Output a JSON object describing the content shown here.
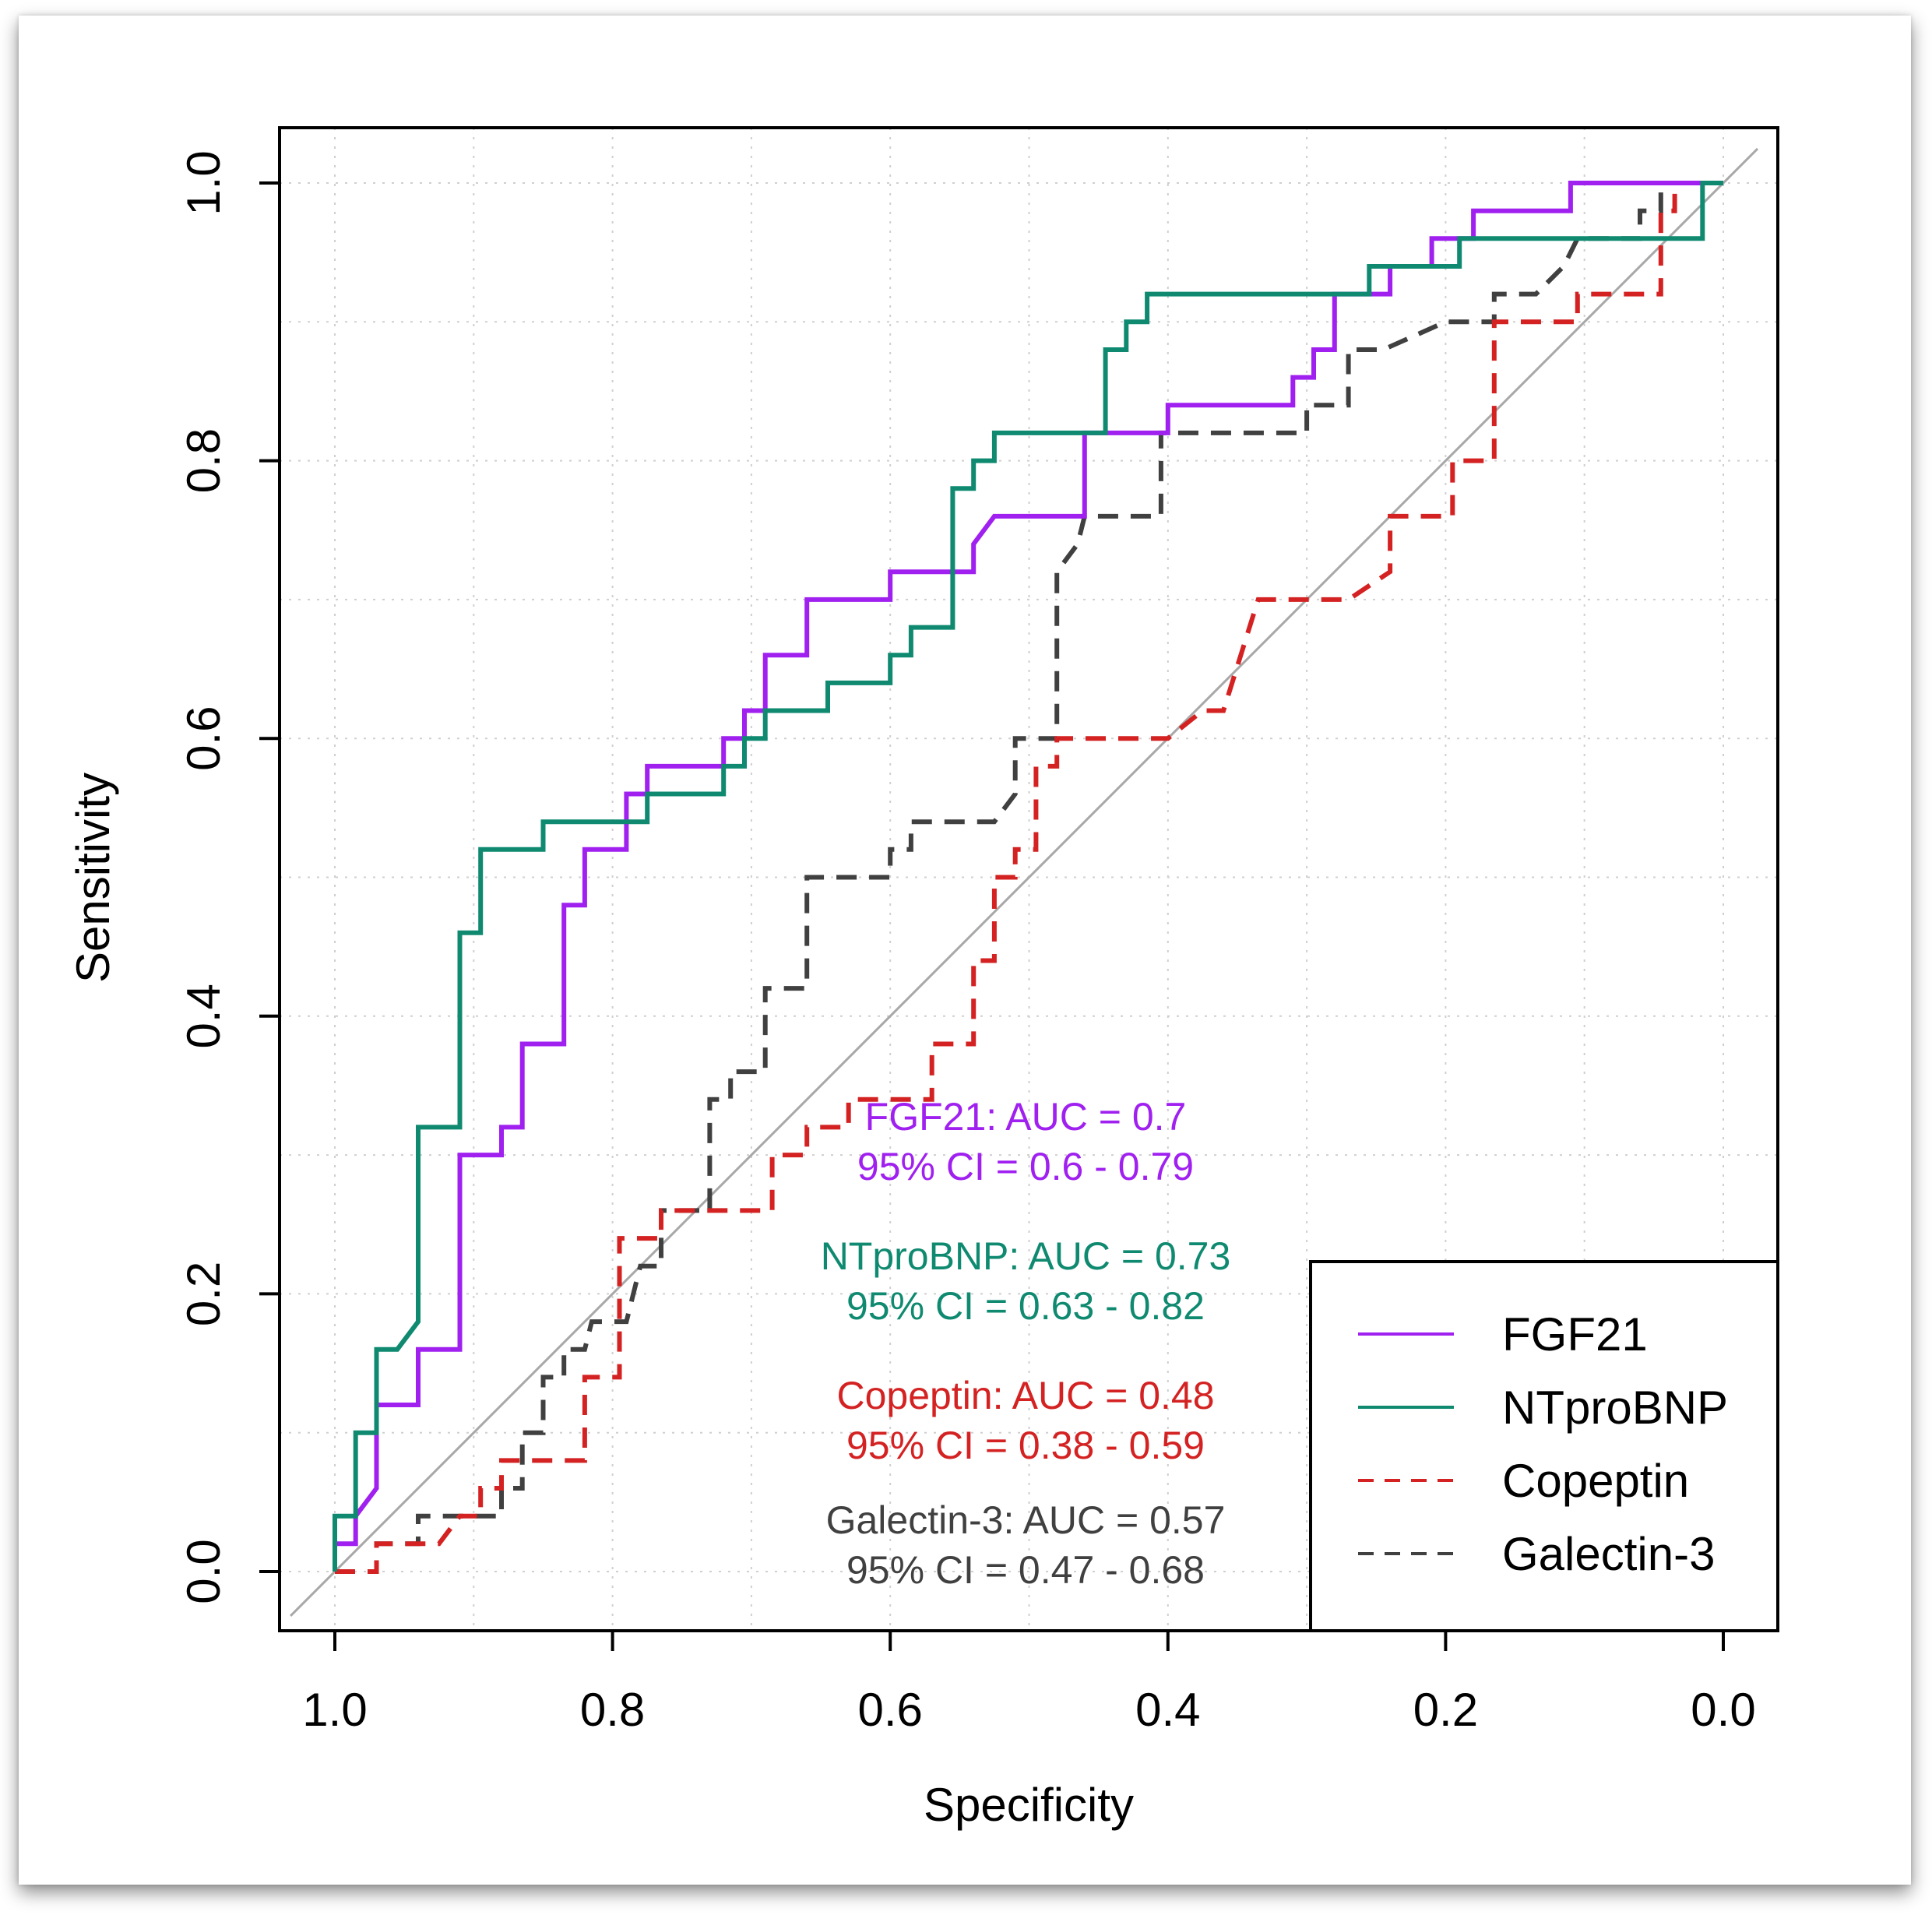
{
  "chart_data": {
    "type": "line",
    "xlabel": "Specificity",
    "ylabel": "Sensitivity",
    "xlim": [
      1.0,
      0.0
    ],
    "ylim": [
      0.0,
      1.0
    ],
    "x_reversed": true,
    "grid": true,
    "x_ticks": [
      "1.0",
      "0.8",
      "0.6",
      "0.4",
      "0.2",
      "0.0"
    ],
    "y_ticks": [
      "0.0",
      "0.2",
      "0.4",
      "0.6",
      "0.8",
      "1.0"
    ],
    "reference_line": {
      "from": [
        1.0,
        0.0
      ],
      "to": [
        0.0,
        1.0
      ],
      "color": "#a8a8a8"
    },
    "legend_position": "bottom-right",
    "series": [
      {
        "name": "FGF21",
        "color": "#a020f0",
        "dash": "solid",
        "auc_label": "FGF21: AUC = 0.7",
        "ci_label": "95% CI = 0.6 - 0.79",
        "points": [
          [
            1.0,
            0.0
          ],
          [
            1.0,
            0.02
          ],
          [
            0.985,
            0.02
          ],
          [
            0.985,
            0.04
          ],
          [
            0.97,
            0.06
          ],
          [
            0.97,
            0.12
          ],
          [
            0.94,
            0.12
          ],
          [
            0.94,
            0.16
          ],
          [
            0.91,
            0.16
          ],
          [
            0.91,
            0.3
          ],
          [
            0.88,
            0.3
          ],
          [
            0.88,
            0.32
          ],
          [
            0.865,
            0.32
          ],
          [
            0.865,
            0.38
          ],
          [
            0.835,
            0.38
          ],
          [
            0.835,
            0.48
          ],
          [
            0.82,
            0.48
          ],
          [
            0.82,
            0.52
          ],
          [
            0.79,
            0.52
          ],
          [
            0.79,
            0.56
          ],
          [
            0.775,
            0.56
          ],
          [
            0.775,
            0.58
          ],
          [
            0.72,
            0.58
          ],
          [
            0.72,
            0.6
          ],
          [
            0.705,
            0.6
          ],
          [
            0.705,
            0.62
          ],
          [
            0.69,
            0.62
          ],
          [
            0.69,
            0.66
          ],
          [
            0.66,
            0.66
          ],
          [
            0.66,
            0.7
          ],
          [
            0.6,
            0.7
          ],
          [
            0.6,
            0.72
          ],
          [
            0.54,
            0.72
          ],
          [
            0.54,
            0.74
          ],
          [
            0.525,
            0.76
          ],
          [
            0.46,
            0.76
          ],
          [
            0.46,
            0.82
          ],
          [
            0.4,
            0.82
          ],
          [
            0.4,
            0.84
          ],
          [
            0.31,
            0.84
          ],
          [
            0.31,
            0.86
          ],
          [
            0.295,
            0.86
          ],
          [
            0.295,
            0.88
          ],
          [
            0.28,
            0.88
          ],
          [
            0.28,
            0.92
          ],
          [
            0.24,
            0.92
          ],
          [
            0.24,
            0.94
          ],
          [
            0.21,
            0.94
          ],
          [
            0.21,
            0.96
          ],
          [
            0.18,
            0.96
          ],
          [
            0.18,
            0.98
          ],
          [
            0.11,
            0.98
          ],
          [
            0.11,
            1.0
          ],
          [
            0.0,
            1.0
          ]
        ]
      },
      {
        "name": "NTproBNP",
        "color": "#0f8a70",
        "dash": "solid",
        "auc_label": "NTproBNP: AUC = 0.73",
        "ci_label": "95% CI = 0.63 - 0.82",
        "points": [
          [
            1.0,
            0.0
          ],
          [
            1.0,
            0.04
          ],
          [
            0.985,
            0.04
          ],
          [
            0.985,
            0.1
          ],
          [
            0.97,
            0.1
          ],
          [
            0.97,
            0.16
          ],
          [
            0.955,
            0.16
          ],
          [
            0.94,
            0.18
          ],
          [
            0.94,
            0.32
          ],
          [
            0.91,
            0.32
          ],
          [
            0.91,
            0.46
          ],
          [
            0.895,
            0.46
          ],
          [
            0.895,
            0.52
          ],
          [
            0.85,
            0.52
          ],
          [
            0.85,
            0.54
          ],
          [
            0.775,
            0.54
          ],
          [
            0.775,
            0.56
          ],
          [
            0.72,
            0.56
          ],
          [
            0.72,
            0.58
          ],
          [
            0.705,
            0.58
          ],
          [
            0.705,
            0.6
          ],
          [
            0.69,
            0.6
          ],
          [
            0.69,
            0.62
          ],
          [
            0.645,
            0.62
          ],
          [
            0.645,
            0.64
          ],
          [
            0.6,
            0.64
          ],
          [
            0.6,
            0.66
          ],
          [
            0.585,
            0.66
          ],
          [
            0.585,
            0.68
          ],
          [
            0.555,
            0.68
          ],
          [
            0.555,
            0.78
          ],
          [
            0.54,
            0.78
          ],
          [
            0.54,
            0.8
          ],
          [
            0.525,
            0.8
          ],
          [
            0.525,
            0.82
          ],
          [
            0.445,
            0.82
          ],
          [
            0.445,
            0.88
          ],
          [
            0.43,
            0.88
          ],
          [
            0.43,
            0.9
          ],
          [
            0.415,
            0.9
          ],
          [
            0.415,
            0.92
          ],
          [
            0.255,
            0.92
          ],
          [
            0.255,
            0.94
          ],
          [
            0.19,
            0.94
          ],
          [
            0.19,
            0.96
          ],
          [
            0.015,
            0.96
          ],
          [
            0.015,
            1.0
          ],
          [
            0.0,
            1.0
          ]
        ]
      },
      {
        "name": "Copeptin",
        "color": "#d42222",
        "dash": "dashed",
        "auc_label": "Copeptin: AUC = 0.48",
        "ci_label": "95% CI = 0.38 - 0.59",
        "points": [
          [
            1.0,
            0.0
          ],
          [
            0.97,
            0.0
          ],
          [
            0.97,
            0.02
          ],
          [
            0.925,
            0.02
          ],
          [
            0.91,
            0.04
          ],
          [
            0.895,
            0.04
          ],
          [
            0.895,
            0.06
          ],
          [
            0.88,
            0.06
          ],
          [
            0.88,
            0.08
          ],
          [
            0.82,
            0.08
          ],
          [
            0.82,
            0.14
          ],
          [
            0.795,
            0.14
          ],
          [
            0.795,
            0.24
          ],
          [
            0.765,
            0.24
          ],
          [
            0.765,
            0.26
          ],
          [
            0.685,
            0.26
          ],
          [
            0.685,
            0.3
          ],
          [
            0.66,
            0.3
          ],
          [
            0.66,
            0.32
          ],
          [
            0.63,
            0.32
          ],
          [
            0.63,
            0.34
          ],
          [
            0.57,
            0.34
          ],
          [
            0.57,
            0.38
          ],
          [
            0.54,
            0.38
          ],
          [
            0.54,
            0.44
          ],
          [
            0.525,
            0.44
          ],
          [
            0.525,
            0.5
          ],
          [
            0.51,
            0.5
          ],
          [
            0.51,
            0.52
          ],
          [
            0.495,
            0.52
          ],
          [
            0.495,
            0.58
          ],
          [
            0.48,
            0.58
          ],
          [
            0.48,
            0.6
          ],
          [
            0.4,
            0.6
          ],
          [
            0.375,
            0.62
          ],
          [
            0.36,
            0.62
          ],
          [
            0.335,
            0.7
          ],
          [
            0.3,
            0.7
          ],
          [
            0.27,
            0.7
          ],
          [
            0.24,
            0.72
          ],
          [
            0.24,
            0.76
          ],
          [
            0.195,
            0.76
          ],
          [
            0.195,
            0.8
          ],
          [
            0.165,
            0.8
          ],
          [
            0.165,
            0.9
          ],
          [
            0.105,
            0.9
          ],
          [
            0.105,
            0.92
          ],
          [
            0.045,
            0.92
          ],
          [
            0.045,
            0.98
          ],
          [
            0.035,
            0.98
          ],
          [
            0.035,
            1.0
          ],
          [
            0.0,
            1.0
          ]
        ]
      },
      {
        "name": "Galectin-3",
        "color": "#404040",
        "dash": "dashed",
        "auc_label": "Galectin-3: AUC = 0.57",
        "ci_label": "95% CI = 0.47 - 0.68",
        "points": [
          [
            1.0,
            0.0
          ],
          [
            0.97,
            0.0
          ],
          [
            0.97,
            0.02
          ],
          [
            0.94,
            0.02
          ],
          [
            0.94,
            0.04
          ],
          [
            0.88,
            0.04
          ],
          [
            0.88,
            0.06
          ],
          [
            0.865,
            0.06
          ],
          [
            0.865,
            0.1
          ],
          [
            0.85,
            0.1
          ],
          [
            0.85,
            0.14
          ],
          [
            0.835,
            0.14
          ],
          [
            0.835,
            0.16
          ],
          [
            0.82,
            0.16
          ],
          [
            0.815,
            0.18
          ],
          [
            0.79,
            0.18
          ],
          [
            0.785,
            0.2
          ],
          [
            0.78,
            0.22
          ],
          [
            0.765,
            0.22
          ],
          [
            0.765,
            0.26
          ],
          [
            0.73,
            0.26
          ],
          [
            0.73,
            0.34
          ],
          [
            0.715,
            0.34
          ],
          [
            0.715,
            0.36
          ],
          [
            0.69,
            0.36
          ],
          [
            0.69,
            0.42
          ],
          [
            0.66,
            0.42
          ],
          [
            0.66,
            0.5
          ],
          [
            0.6,
            0.5
          ],
          [
            0.6,
            0.52
          ],
          [
            0.585,
            0.52
          ],
          [
            0.585,
            0.54
          ],
          [
            0.525,
            0.54
          ],
          [
            0.51,
            0.56
          ],
          [
            0.51,
            0.6
          ],
          [
            0.48,
            0.6
          ],
          [
            0.48,
            0.72
          ],
          [
            0.465,
            0.74
          ],
          [
            0.46,
            0.76
          ],
          [
            0.405,
            0.76
          ],
          [
            0.405,
            0.82
          ],
          [
            0.3,
            0.82
          ],
          [
            0.3,
            0.84
          ],
          [
            0.27,
            0.84
          ],
          [
            0.27,
            0.88
          ],
          [
            0.245,
            0.88
          ],
          [
            0.2,
            0.9
          ],
          [
            0.165,
            0.9
          ],
          [
            0.165,
            0.92
          ],
          [
            0.135,
            0.92
          ],
          [
            0.115,
            0.94
          ],
          [
            0.105,
            0.96
          ],
          [
            0.06,
            0.96
          ],
          [
            0.06,
            0.98
          ],
          [
            0.045,
            0.98
          ],
          [
            0.045,
            1.0
          ],
          [
            0.0,
            1.0
          ]
        ]
      }
    ]
  }
}
